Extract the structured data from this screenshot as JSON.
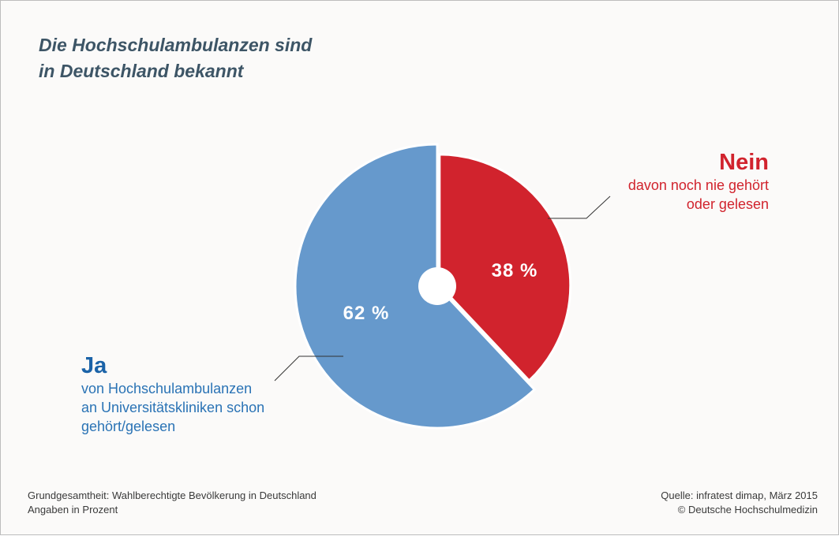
{
  "title_lines": [
    "Die Hochschulambulanzen sind",
    "in Deutschland bekannt"
  ],
  "chart_data": {
    "type": "pie",
    "title": "Die Hochschulambulanzen sind in Deutschland bekannt",
    "categories": [
      "Nein",
      "Ja"
    ],
    "values": [
      38,
      62
    ],
    "data_labels": [
      "38 %",
      "62 %"
    ],
    "colors": [
      "#d1232d",
      "#6699cc"
    ],
    "unit": "%",
    "legend": "none"
  },
  "labels": {
    "nein": {
      "head": "Nein",
      "lines": [
        "davon noch nie gehört",
        "oder gelesen"
      ]
    },
    "ja": {
      "head": "Ja",
      "lines": [
        "von Hochschulambulanzen",
        "an Universitätskliniken schon",
        "gehört/gelesen"
      ]
    }
  },
  "footer": {
    "left": [
      "Grundgesamtheit: Wahlberechtigte Bevölkerung in Deutschland",
      "Angaben in Prozent"
    ],
    "right": [
      "Quelle: infratest dimap, März 2015",
      "© Deutsche Hochschulmedizin"
    ]
  }
}
